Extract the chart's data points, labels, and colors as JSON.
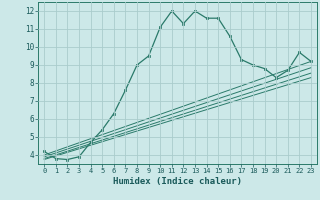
{
  "background_color": "#cce8e8",
  "grid_color": "#aacccc",
  "line_color": "#2a7a6a",
  "xlabel": "Humidex (Indice chaleur)",
  "xlim": [
    -0.5,
    23.5
  ],
  "ylim": [
    3.5,
    12.5
  ],
  "yticks": [
    4,
    5,
    6,
    7,
    8,
    9,
    10,
    11,
    12
  ],
  "xticks": [
    0,
    1,
    2,
    3,
    4,
    5,
    6,
    7,
    8,
    9,
    10,
    11,
    12,
    13,
    14,
    15,
    16,
    17,
    18,
    19,
    20,
    21,
    22,
    23
  ],
  "series1_x": [
    0,
    1,
    2,
    3,
    4,
    5,
    6,
    7,
    8,
    9,
    10,
    11,
    12,
    13,
    14,
    15,
    16,
    17,
    18,
    19,
    20,
    21,
    22,
    23
  ],
  "series1_y": [
    4.2,
    3.8,
    3.75,
    3.9,
    4.7,
    5.4,
    6.3,
    7.6,
    9.0,
    9.5,
    11.1,
    12.0,
    11.3,
    12.0,
    11.6,
    11.6,
    10.6,
    9.3,
    9.0,
    8.8,
    8.3,
    8.7,
    9.7,
    9.2
  ],
  "series2_x": [
    0,
    23
  ],
  "series2_y": [
    4.0,
    9.2
  ],
  "series3_x": [
    0,
    23
  ],
  "series3_y": [
    3.9,
    8.85
  ],
  "series4_x": [
    0,
    23
  ],
  "series4_y": [
    3.8,
    8.55
  ],
  "series5_x": [
    0,
    23
  ],
  "series5_y": [
    3.75,
    8.3
  ]
}
